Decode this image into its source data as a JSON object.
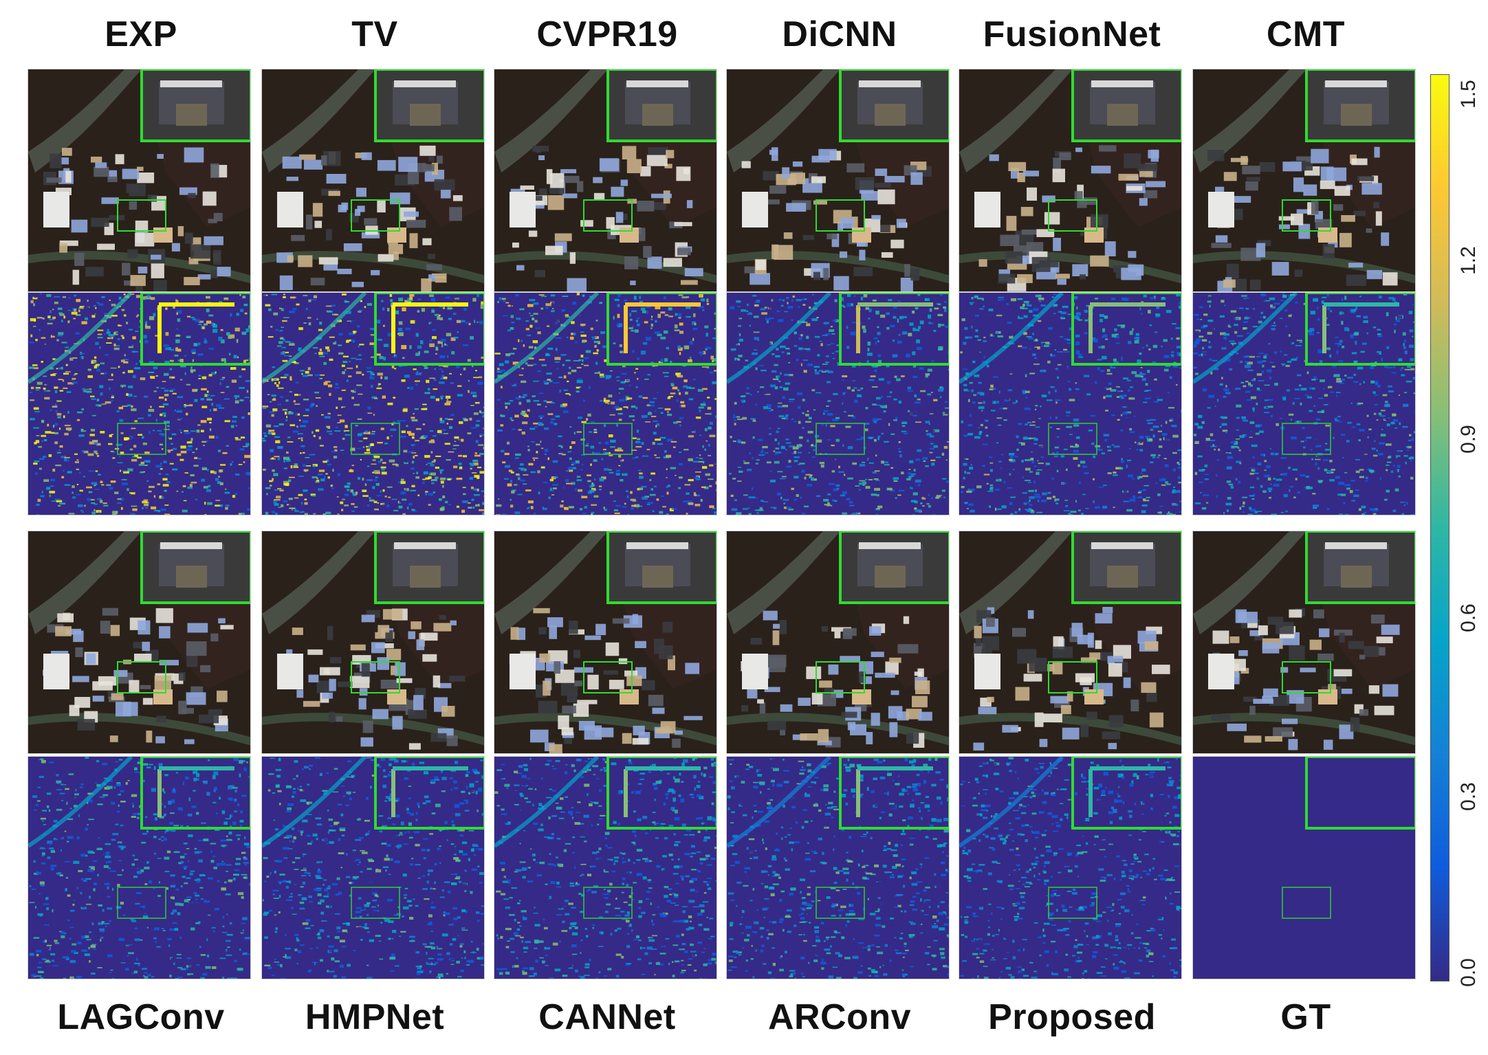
{
  "figure": {
    "top_labels": [
      "EXP",
      "TV",
      "CVPR19",
      "DiCNN",
      "FusionNet",
      "CMT"
    ],
    "bottom_labels": [
      "LAGConv",
      "HMPNet",
      "CANNet",
      "ARConv",
      "Proposed",
      "GT"
    ],
    "colorbar": {
      "ticks": [
        "0.0",
        "0.3",
        "0.6",
        "0.9",
        "1.2",
        "1.5"
      ],
      "colormap": "parula",
      "min": 0.0,
      "max": 1.5,
      "colors": [
        "#352a87",
        "#0f5cdd",
        "#1481d6",
        "#06a4ca",
        "#2eb7a4",
        "#87bf77",
        "#d1bb59",
        "#fec832",
        "#f9fb0e"
      ]
    },
    "methods": [
      {
        "name": "EXP",
        "error_level": 0.85
      },
      {
        "name": "TV",
        "error_level": 0.9
      },
      {
        "name": "CVPR19",
        "error_level": 0.75
      },
      {
        "name": "DiCNN",
        "error_level": 0.45
      },
      {
        "name": "FusionNet",
        "error_level": 0.4
      },
      {
        "name": "CMT",
        "error_level": 0.35
      },
      {
        "name": "LAGConv",
        "error_level": 0.3
      },
      {
        "name": "HMPNet",
        "error_level": 0.28
      },
      {
        "name": "CANNet",
        "error_level": 0.3
      },
      {
        "name": "ARConv",
        "error_level": 0.27
      },
      {
        "name": "Proposed",
        "error_level": 0.22
      },
      {
        "name": "GT",
        "error_level": 0.0
      }
    ],
    "highlight_color": "#2fdc2f"
  }
}
